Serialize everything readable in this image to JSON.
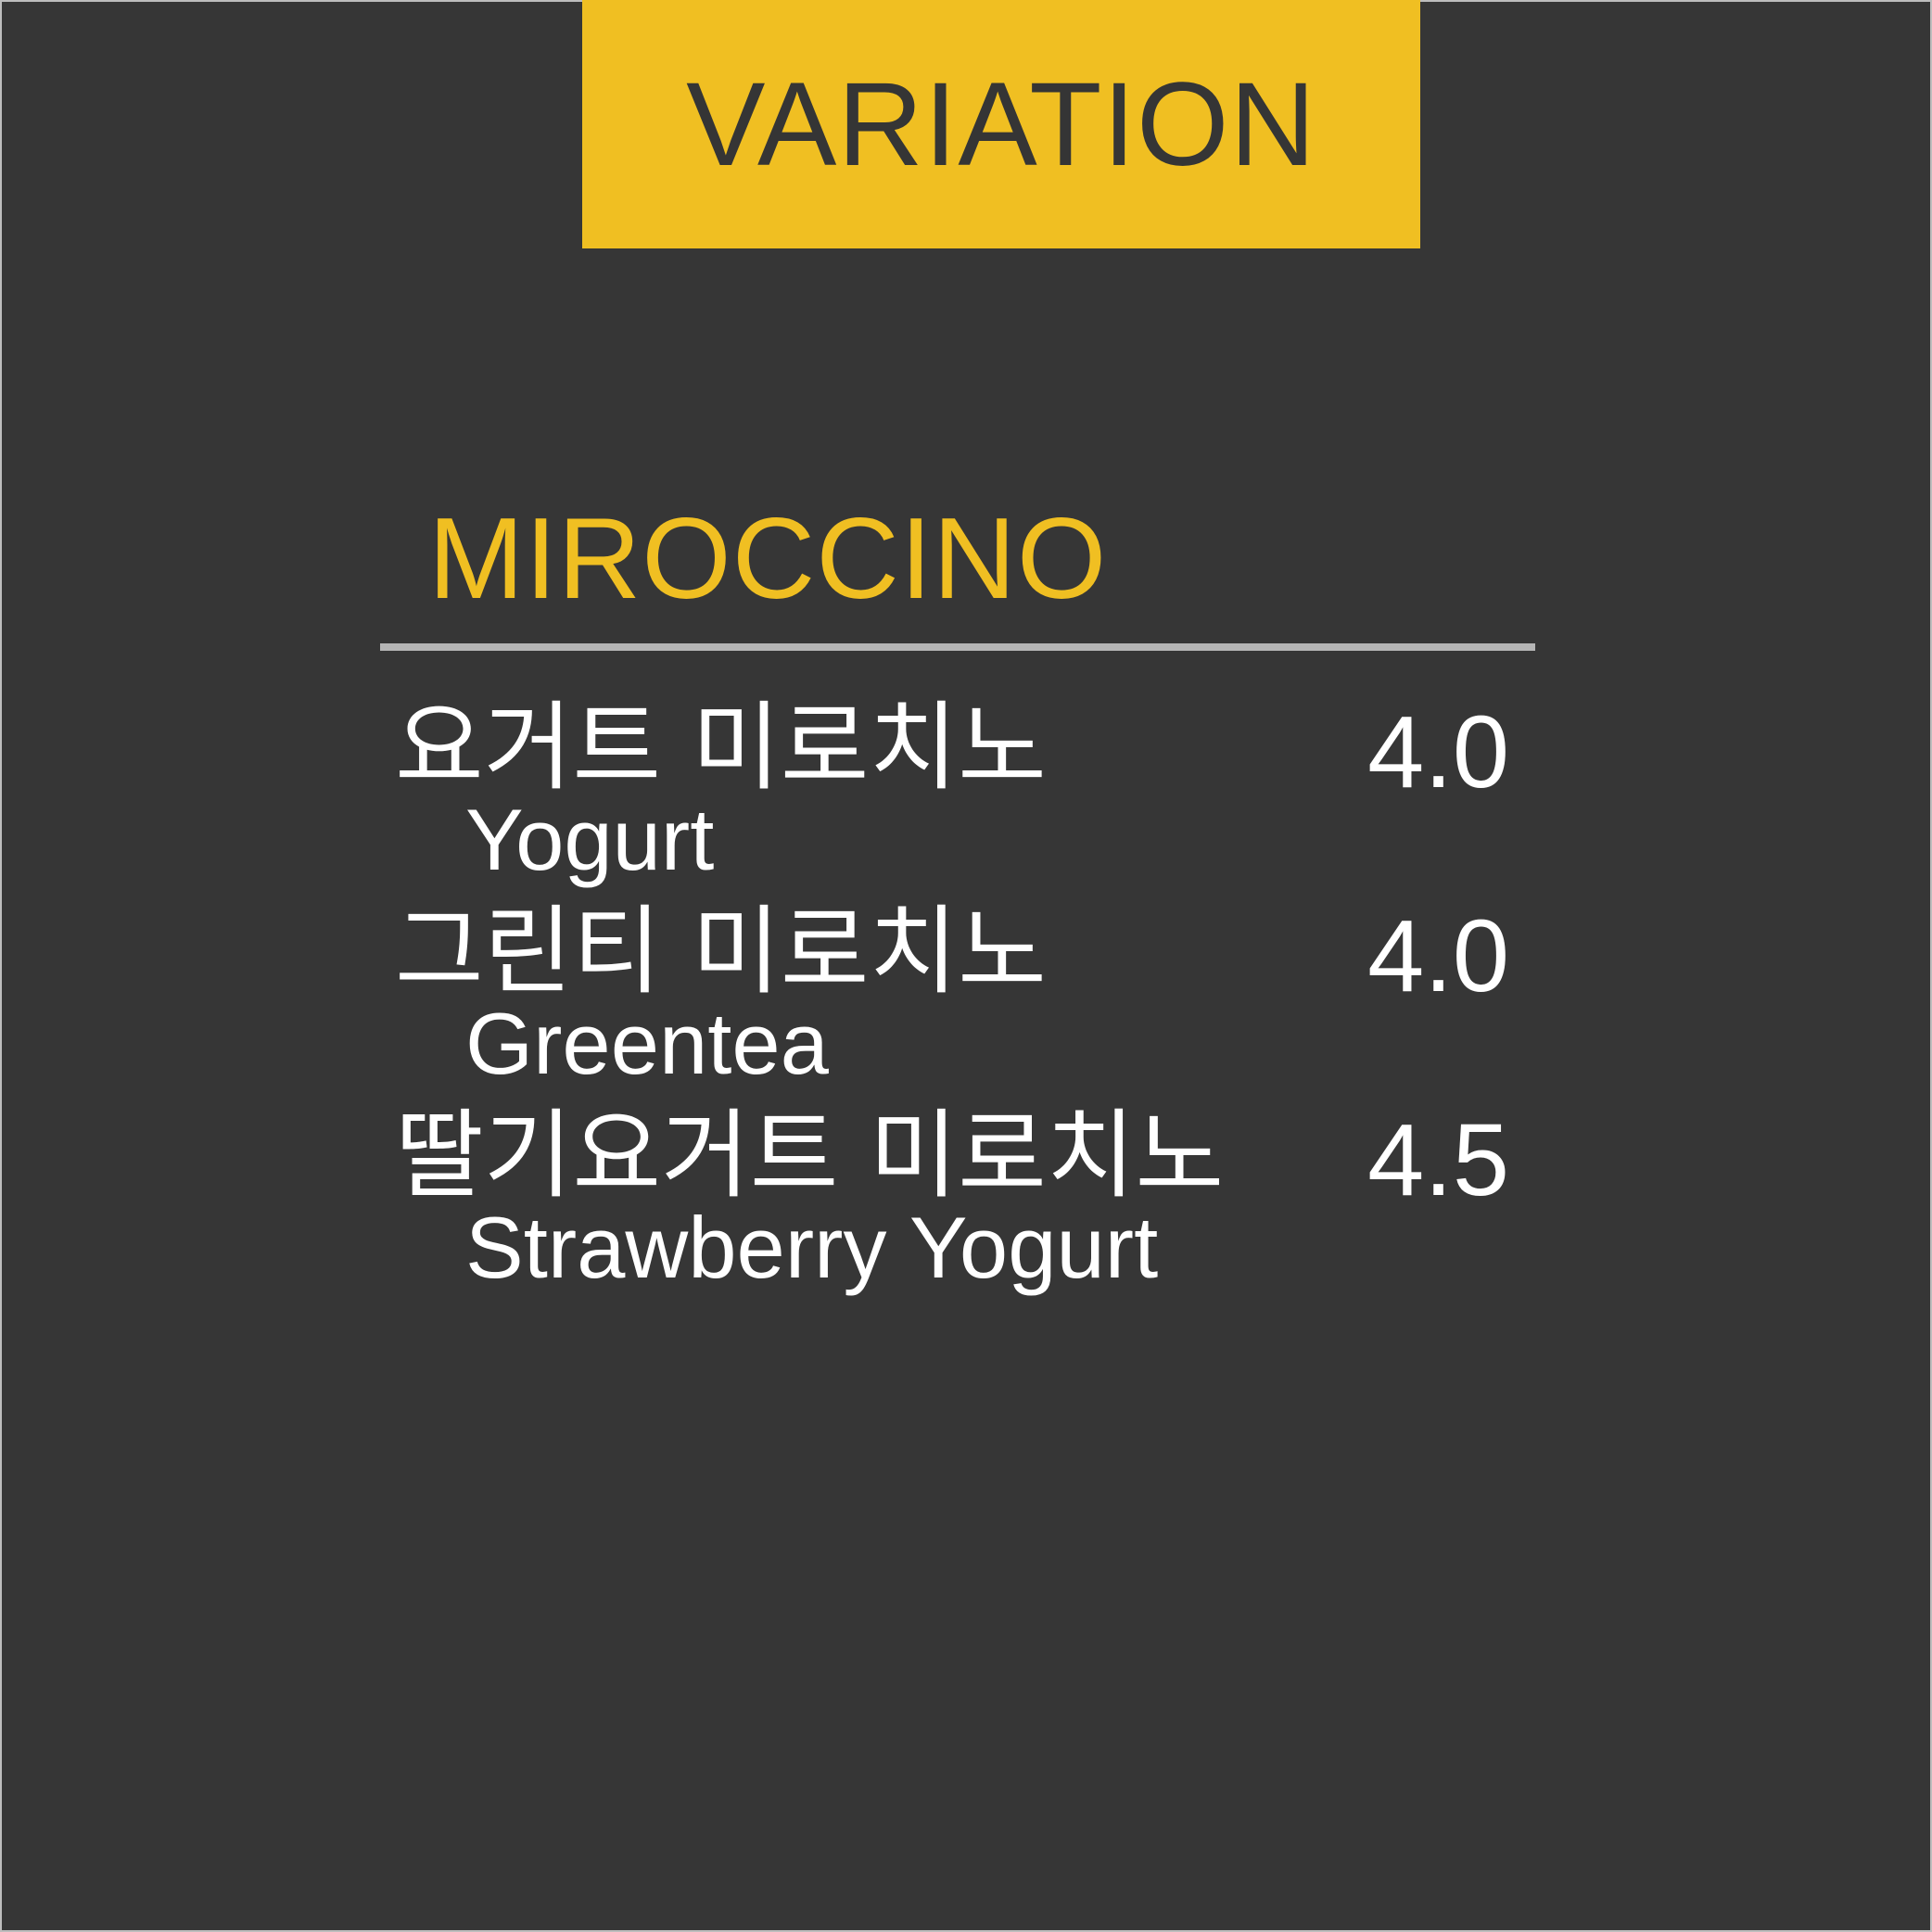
{
  "header": {
    "title": "VARIATION"
  },
  "section": {
    "title": "MIROCCINO"
  },
  "items": [
    {
      "name_ko": "요거트 미로치노",
      "name_en": "Yogurt",
      "price": "4.0"
    },
    {
      "name_ko": "그린티 미로치노",
      "name_en": "Greentea",
      "price": "4.0"
    },
    {
      "name_ko": "딸기요거트 미로치노",
      "name_en": "Strawberry Yogurt",
      "price": "4.5"
    }
  ],
  "colors": {
    "background": "#363636",
    "accent": "#F0BF22",
    "text": "#FFFFFF",
    "divider": "#B5B5B5"
  }
}
